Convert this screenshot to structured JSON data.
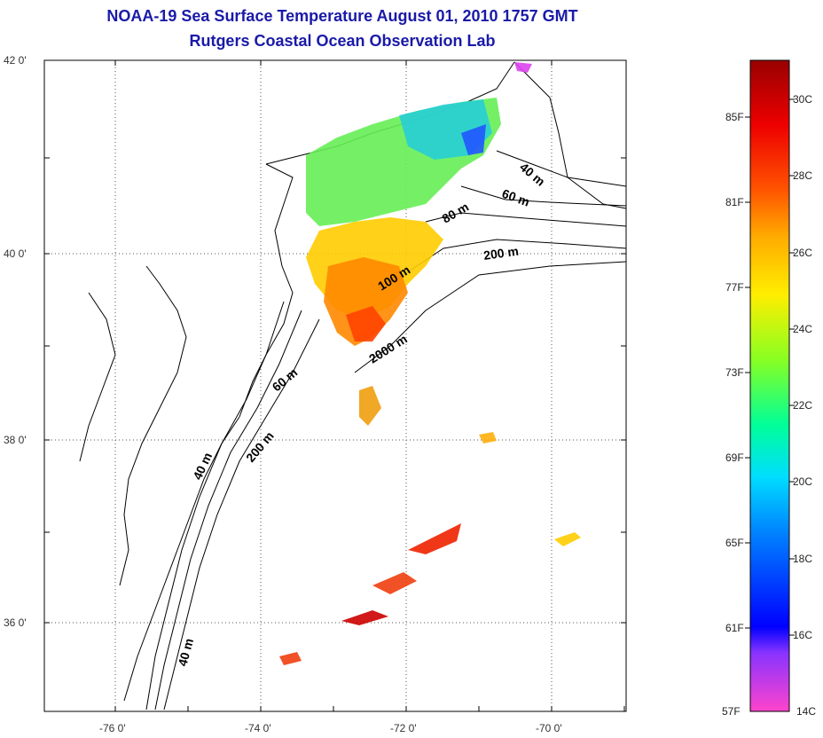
{
  "title": {
    "line1": "NOAA-19 Sea Surface Temperature August 01, 2010 1757 GMT",
    "line2": "Rutgers Coastal Ocean Observation Lab"
  },
  "axes": {
    "lat_labels": [
      "42 0'",
      "40 0'",
      "38 0'",
      "36 0'"
    ],
    "lon_labels": [
      "-76 0'",
      "-74 0'",
      "-72 0'",
      "-70 0'"
    ]
  },
  "contour_labels": [
    "40 m",
    "60 m",
    "80 m",
    "200 m",
    "100 m",
    "2000 m",
    "60 m",
    "200 m",
    "40 m",
    "40 m"
  ],
  "colorbar": {
    "fahrenheit": [
      "85F",
      "81F",
      "77F",
      "73F",
      "69F",
      "65F",
      "61F",
      "57F"
    ],
    "celsius": [
      "30C",
      "28C",
      "26C",
      "24C",
      "22C",
      "20C",
      "18C",
      "16C",
      "14C"
    ]
  },
  "colors": {
    "title": "#1a1aa8",
    "colorbar_stops": [
      "#ff44cc",
      "#8833ff",
      "#0000ff",
      "#0088ff",
      "#00ddff",
      "#00ff99",
      "#88ff22",
      "#ffee00",
      "#ffaa00",
      "#ff5500",
      "#ee0000",
      "#990000"
    ]
  }
}
